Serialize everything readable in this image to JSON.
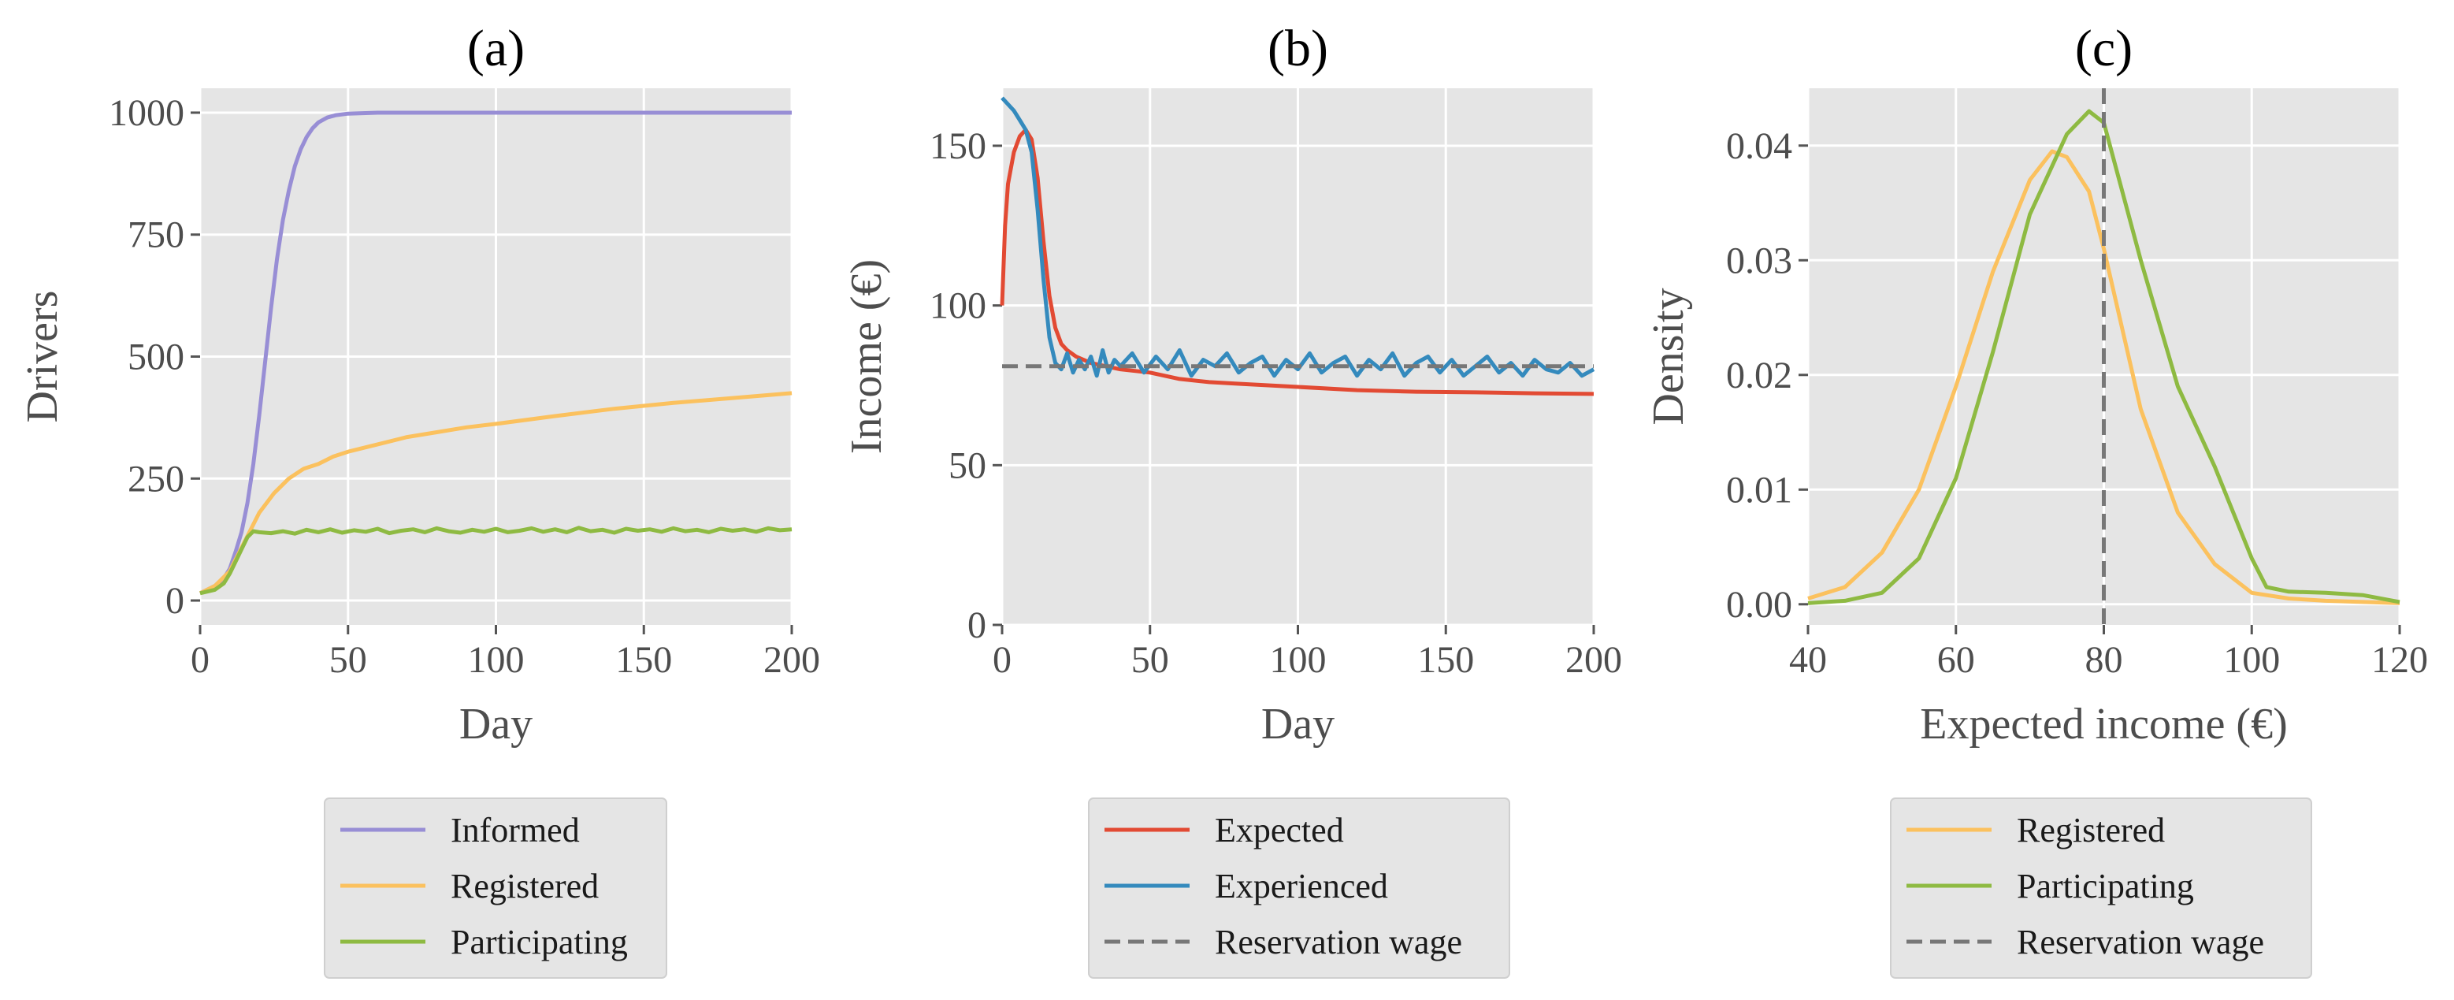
{
  "chart_data": [
    {
      "type": "line",
      "title": "(a)",
      "xlabel": "Day",
      "ylabel": "Drivers",
      "xlim": [
        0,
        200
      ],
      "ylim": [
        -50,
        1050
      ],
      "xticks": [
        0,
        50,
        100,
        150,
        200
      ],
      "yticks": [
        0,
        250,
        500,
        750,
        1000
      ],
      "grid": true,
      "legend_position": "below",
      "series": [
        {
          "name": "Informed",
          "color": "#988ed5",
          "style": "solid",
          "x": [
            0,
            5,
            8,
            10,
            12,
            14,
            16,
            18,
            20,
            22,
            24,
            26,
            28,
            30,
            32,
            34,
            36,
            38,
            40,
            43,
            46,
            50,
            55,
            60,
            70,
            80,
            100,
            150,
            200
          ],
          "y": [
            15,
            30,
            45,
            65,
            100,
            140,
            200,
            280,
            380,
            490,
            600,
            700,
            780,
            840,
            890,
            925,
            950,
            968,
            980,
            990,
            995,
            998,
            999,
            1000,
            1000,
            1000,
            1000,
            1000,
            1000
          ]
        },
        {
          "name": "Registered",
          "color": "#fbc15e",
          "style": "solid",
          "x": [
            0,
            5,
            10,
            15,
            20,
            25,
            30,
            35,
            40,
            45,
            50,
            60,
            70,
            80,
            90,
            100,
            120,
            140,
            160,
            180,
            200
          ],
          "y": [
            15,
            30,
            60,
            120,
            180,
            220,
            250,
            270,
            280,
            295,
            305,
            320,
            335,
            345,
            355,
            362,
            378,
            393,
            405,
            415,
            425
          ]
        },
        {
          "name": "Participating",
          "color": "#8eba42",
          "style": "solid",
          "x": [
            0,
            5,
            8,
            10,
            12,
            14,
            16,
            18,
            20,
            24,
            28,
            32,
            36,
            40,
            44,
            48,
            52,
            56,
            60,
            64,
            68,
            72,
            76,
            80,
            84,
            88,
            92,
            96,
            100,
            104,
            108,
            112,
            116,
            120,
            124,
            128,
            132,
            136,
            140,
            144,
            148,
            152,
            156,
            160,
            164,
            168,
            172,
            176,
            180,
            184,
            188,
            192,
            196,
            200
          ],
          "y": [
            15,
            22,
            35,
            55,
            80,
            105,
            130,
            142,
            140,
            138,
            142,
            137,
            145,
            140,
            146,
            139,
            144,
            141,
            147,
            138,
            143,
            146,
            140,
            148,
            142,
            139,
            145,
            141,
            147,
            140,
            143,
            148,
            141,
            146,
            140,
            149,
            142,
            145,
            139,
            147,
            143,
            146,
            141,
            148,
            142,
            145,
            140,
            147,
            143,
            146,
            141,
            148,
            144,
            146
          ]
        }
      ]
    },
    {
      "type": "line",
      "title": "(b)",
      "xlabel": "Day",
      "ylabel": "Income (€)",
      "xlim": [
        0,
        200
      ],
      "ylim": [
        0,
        168
      ],
      "xticks": [
        0,
        50,
        100,
        150,
        200
      ],
      "yticks": [
        0,
        50,
        100,
        150
      ],
      "grid": true,
      "legend_position": "below",
      "series": [
        {
          "name": "Expected",
          "color": "#e24a33",
          "style": "solid",
          "x": [
            0,
            1,
            2,
            4,
            6,
            8,
            10,
            12,
            14,
            16,
            18,
            20,
            22,
            25,
            30,
            35,
            40,
            50,
            60,
            70,
            80,
            90,
            100,
            120,
            140,
            160,
            180,
            200
          ],
          "y": [
            100,
            125,
            138,
            148,
            153,
            155,
            152,
            140,
            120,
            103,
            93,
            88,
            86,
            84,
            82,
            81,
            80,
            79,
            77,
            76,
            75.5,
            75,
            74.5,
            73.5,
            73,
            72.8,
            72.5,
            72.3
          ]
        },
        {
          "name": "Experienced",
          "color": "#348abd",
          "style": "solid",
          "x": [
            0,
            2,
            4,
            6,
            8,
            10,
            12,
            14,
            16,
            18,
            20,
            22,
            24,
            26,
            28,
            30,
            32,
            34,
            36,
            38,
            40,
            44,
            48,
            52,
            56,
            60,
            64,
            68,
            72,
            76,
            80,
            84,
            88,
            92,
            96,
            100,
            104,
            108,
            112,
            116,
            120,
            124,
            128,
            132,
            136,
            140,
            144,
            148,
            152,
            156,
            160,
            164,
            168,
            172,
            176,
            180,
            184,
            188,
            192,
            196,
            200
          ],
          "y": [
            165,
            163,
            161,
            158,
            155,
            148,
            130,
            108,
            90,
            82,
            80,
            85,
            79,
            83,
            80,
            84,
            78,
            86,
            79,
            83,
            81,
            85,
            79,
            84,
            80,
            86,
            78,
            83,
            81,
            85,
            79,
            82,
            84,
            78,
            83,
            80,
            85,
            79,
            82,
            84,
            78,
            83,
            80,
            85,
            78,
            82,
            84,
            79,
            83,
            78,
            81,
            84,
            79,
            82,
            78,
            83,
            80,
            79,
            82,
            78,
            80
          ]
        },
        {
          "name": "Reservation wage",
          "color": "#777777",
          "style": "dashed",
          "x": [
            0,
            200
          ],
          "y": [
            81,
            81
          ]
        }
      ]
    },
    {
      "type": "line",
      "title": "(c)",
      "xlabel": "Expected income (€)",
      "ylabel": "Density",
      "xlim": [
        40,
        120
      ],
      "ylim": [
        -0.0018,
        0.045
      ],
      "xticks": [
        40,
        60,
        80,
        100,
        120
      ],
      "yticks": [
        0.0,
        0.01,
        0.02,
        0.03,
        0.04
      ],
      "ytick_labels": [
        "0.00",
        "0.01",
        "0.02",
        "0.03",
        "0.04"
      ],
      "grid": true,
      "legend_position": "below",
      "series": [
        {
          "name": "Registered",
          "color": "#fbc15e",
          "style": "solid",
          "x": [
            40,
            45,
            50,
            55,
            60,
            65,
            70,
            73,
            75,
            78,
            80,
            85,
            90,
            95,
            100,
            105,
            110,
            115,
            120
          ],
          "y": [
            0.0005,
            0.0015,
            0.0045,
            0.01,
            0.019,
            0.029,
            0.037,
            0.0395,
            0.039,
            0.036,
            0.031,
            0.017,
            0.008,
            0.0035,
            0.001,
            0.0005,
            0.0003,
            0.0002,
            0.0001
          ]
        },
        {
          "name": "Participating",
          "color": "#8eba42",
          "style": "solid",
          "x": [
            40,
            45,
            50,
            55,
            60,
            65,
            70,
            75,
            78,
            80,
            85,
            90,
            95,
            100,
            102,
            105,
            110,
            115,
            120
          ],
          "y": [
            0.0001,
            0.0003,
            0.001,
            0.004,
            0.011,
            0.022,
            0.034,
            0.041,
            0.043,
            0.042,
            0.03,
            0.019,
            0.012,
            0.004,
            0.0015,
            0.0011,
            0.001,
            0.0008,
            0.0002
          ]
        },
        {
          "name": "Reservation wage",
          "color": "#777777",
          "style": "dashed",
          "vline_x": 80
        }
      ]
    }
  ]
}
